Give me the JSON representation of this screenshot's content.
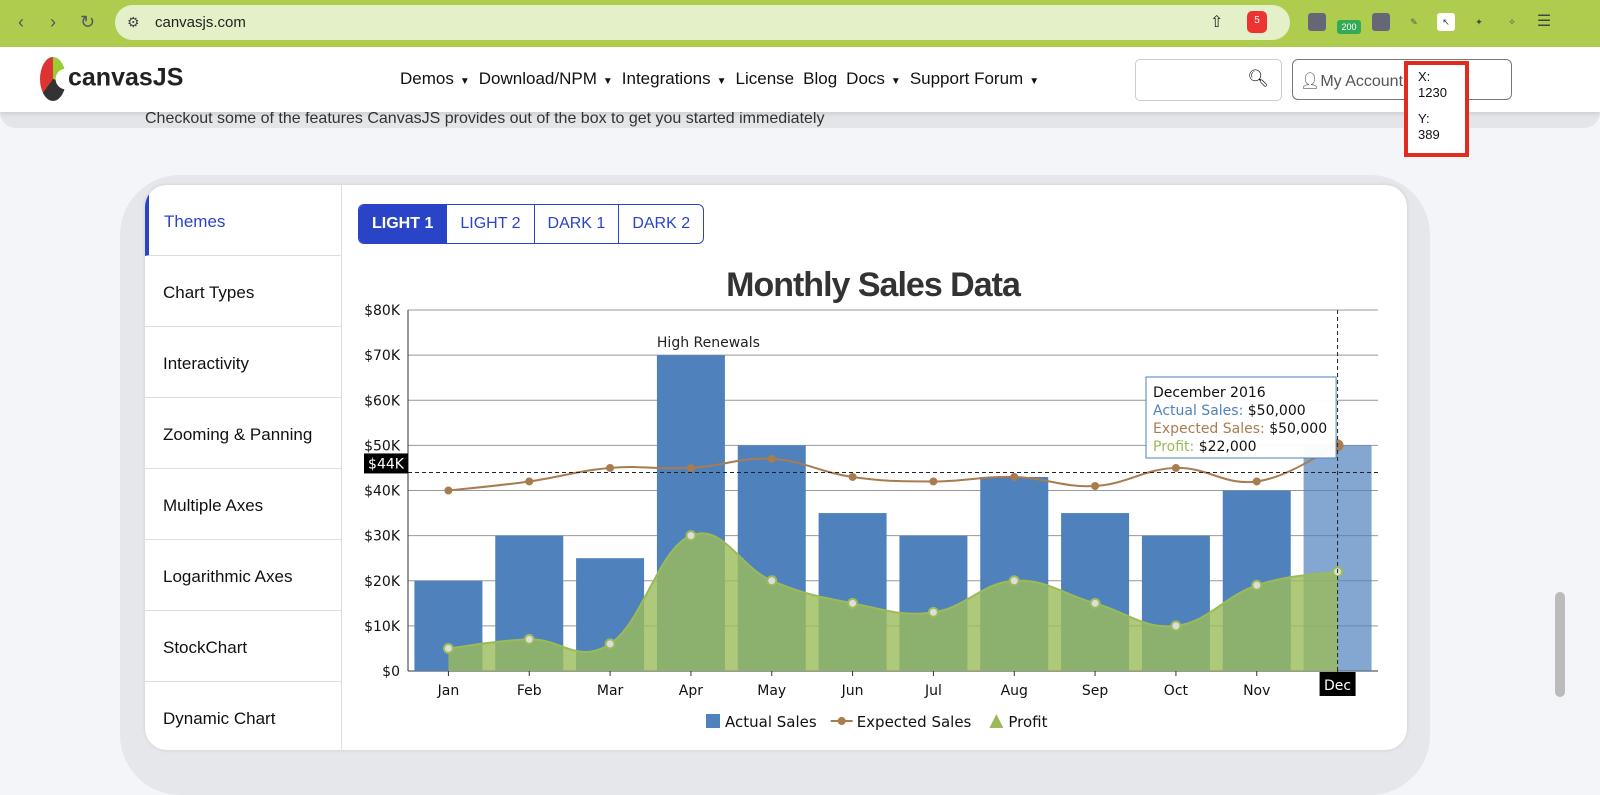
{
  "browser": {
    "url": "canvasjs.com",
    "brave_badge": "5",
    "ext_badge": "200"
  },
  "header": {
    "logo": "canvasJS",
    "nav": [
      "Demos",
      "Download/NPM",
      "Integrations",
      "License",
      "Blog",
      "Docs",
      "Support Forum"
    ],
    "nav_dropdown": [
      true,
      true,
      true,
      false,
      false,
      true,
      true
    ],
    "account": "My Account"
  },
  "subtitle": "Checkout some of the features CanvasJS provides out of the box to get you started immediately",
  "tracker": {
    "x_label": "X:",
    "x": "1230",
    "y_label": "Y:",
    "y": "389"
  },
  "sidebar": [
    "Themes",
    "Chart Types",
    "Interactivity",
    "Zooming & Panning",
    "Multiple Axes",
    "Logarithmic Axes",
    "StockChart",
    "Dynamic Chart"
  ],
  "theme_tabs": [
    "LIGHT 1",
    "LIGHT 2",
    "DARK 1",
    "DARK 2"
  ],
  "colors": {
    "actual": "#4f81bc",
    "expected": "#a97c50",
    "profit": "#9bbb59",
    "accent": "#2a44c8"
  },
  "chart_data": {
    "type": "bar",
    "title": "Monthly Sales Data",
    "categories": [
      "Jan",
      "Feb",
      "Mar",
      "Apr",
      "May",
      "Jun",
      "Jul",
      "Aug",
      "Sep",
      "Oct",
      "Nov",
      "Dec"
    ],
    "ylim": [
      0,
      80000
    ],
    "yticks": [
      "$0",
      "$10K",
      "$20K",
      "$30K",
      "$40K",
      "$50K",
      "$60K",
      "$70K",
      "$80K"
    ],
    "series": [
      {
        "name": "Actual Sales",
        "type": "column",
        "values": [
          20000,
          30000,
          25000,
          70000,
          50000,
          35000,
          30000,
          43000,
          35000,
          30000,
          40000,
          50000
        ]
      },
      {
        "name": "Expected Sales",
        "type": "spline",
        "values": [
          40000,
          42000,
          45000,
          45000,
          47000,
          43000,
          42000,
          43000,
          41000,
          45000,
          42000,
          50000
        ]
      },
      {
        "name": "Profit",
        "type": "splineArea",
        "values": [
          5000,
          7000,
          6000,
          30000,
          20000,
          15000,
          13000,
          20000,
          15000,
          10000,
          19000,
          22000
        ]
      }
    ],
    "annotation": {
      "index": 3,
      "text": "High Renewals"
    },
    "crosshair": {
      "y_label": "$44K",
      "y_value": 44000,
      "x_label": "Dec"
    },
    "tooltip": {
      "title": "December 2016",
      "rows": [
        {
          "label": "Actual Sales:",
          "value": "$50,000"
        },
        {
          "label": "Expected Sales:",
          "value": "$50,000"
        },
        {
          "label": "Profit:",
          "value": "$22,000"
        }
      ]
    },
    "legend": {
      "position": "bottom",
      "items": [
        "Actual Sales",
        "Expected Sales",
        "Profit"
      ]
    }
  }
}
